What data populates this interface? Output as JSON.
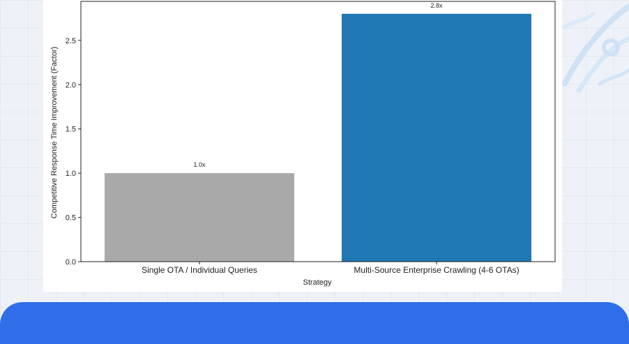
{
  "chart_data": {
    "type": "bar",
    "title": "",
    "xlabel": "Strategy",
    "ylabel": "Competitive Response Time Improvement (Factor)",
    "ylim": [
      0,
      2.94
    ],
    "yticks": [
      0.0,
      0.5,
      1.0,
      1.5,
      2.0,
      2.5
    ],
    "ytick_labels": [
      "0.0",
      "0.5",
      "1.0",
      "1.5",
      "2.0",
      "2.5"
    ],
    "categories": [
      "Single OTA / Individual Queries",
      "Multi-Source Enterprise Crawling (4-6 OTAs)"
    ],
    "values": [
      1.0,
      2.8
    ],
    "data_labels": [
      "1.0x",
      "2.8x"
    ],
    "colors": [
      "#a9a9a9",
      "#1f77b4"
    ],
    "grid": false
  },
  "theme": {
    "banner_color": "#2f6ee8",
    "background_color": "#eef2f8"
  }
}
